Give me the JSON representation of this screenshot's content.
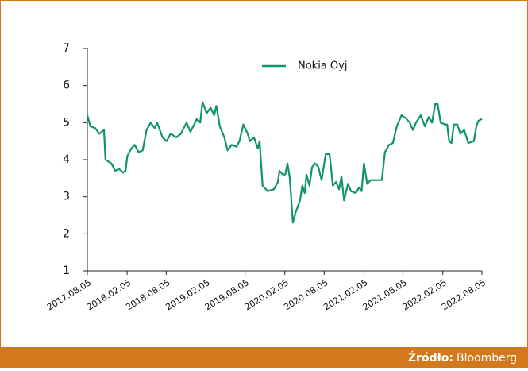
{
  "chart_data": {
    "type": "line",
    "x": [
      "2017.08.05",
      "2017.08.19",
      "2017.09.11",
      "2017.09.29",
      "2017.10.21",
      "2017.10.28",
      "2017.11.24",
      "2017.12.12",
      "2017.12.30",
      "2018.01.18",
      "2018.01.29",
      "2018.02.06",
      "2018.02.24",
      "2018.03.12",
      "2018.03.30",
      "2018.04.18",
      "2018.05.06",
      "2018.05.25",
      "2018.06.13",
      "2018.06.24",
      "2018.07.19",
      "2018.08.07",
      "2018.08.25",
      "2018.09.20",
      "2018.10.12",
      "2018.11.07",
      "2018.11.25",
      "2018.12.25",
      "2019.01.09",
      "2019.01.20",
      "2019.02.08",
      "2019.02.26",
      "2019.03.15",
      "2019.03.25",
      "2019.04.10",
      "2019.05.01",
      "2019.05.16",
      "2019.06.04",
      "2019.06.26",
      "2019.07.10",
      "2019.07.28",
      "2019.08.17",
      "2019.08.27",
      "2019.09.15",
      "2019.10.03",
      "2019.10.11",
      "2019.10.18",
      "2019.10.25",
      "2019.11.17",
      "2019.12.16",
      "2020.01.04",
      "2020.01.11",
      "2020.01.26",
      "2020.02.07",
      "2020.02.17",
      "2020.02.28",
      "2020.03.13",
      "2020.03.27",
      "2020.04.15",
      "2020.04.26",
      "2020.05.07",
      "2020.05.15",
      "2020.05.29",
      "2020.06.10",
      "2020.06.24",
      "2020.07.09",
      "2020.07.24",
      "2020.08.12",
      "2020.08.30",
      "2020.09.14",
      "2020.09.29",
      "2020.10.13",
      "2020.10.24",
      "2020.11.05",
      "2020.11.23",
      "2020.12.07",
      "2020.12.29",
      "2021.01.14",
      "2021.01.25",
      "2021.02.05",
      "2021.02.20",
      "2021.03.08",
      "2021.04.07",
      "2021.04.29",
      "2021.05.13",
      "2021.06.01",
      "2021.06.19",
      "2021.07.07",
      "2021.07.29",
      "2021.08.21",
      "2021.09.05",
      "2021.09.20",
      "2021.10.04",
      "2021.10.26",
      "2021.11.14",
      "2021.12.02",
      "2021.12.17",
      "2022.01.01",
      "2022.01.12",
      "2022.01.26",
      "2022.02.15",
      "2022.02.25",
      "2022.03.06",
      "2022.03.17",
      "2022.03.28",
      "2022.04.13",
      "2022.04.27",
      "2022.05.15",
      "2022.06.03",
      "2022.06.29",
      "2022.07.10",
      "2022.07.20",
      "2022.08.05"
    ],
    "series": [
      {
        "name": "Nokia Oyj",
        "color": "#0f9468",
        "values": [
          5.2,
          4.9,
          4.85,
          4.7,
          4.8,
          4.0,
          3.9,
          3.7,
          3.75,
          3.65,
          3.7,
          4.1,
          4.3,
          4.4,
          4.2,
          4.25,
          4.8,
          5.0,
          4.85,
          5.0,
          4.6,
          4.5,
          4.7,
          4.6,
          4.7,
          5.0,
          4.75,
          5.1,
          5.0,
          5.55,
          5.25,
          5.4,
          5.2,
          5.45,
          4.9,
          4.6,
          4.25,
          4.4,
          4.35,
          4.5,
          4.95,
          4.7,
          4.5,
          4.6,
          4.3,
          4.5,
          3.9,
          3.3,
          3.15,
          3.2,
          3.4,
          3.7,
          3.6,
          3.6,
          3.9,
          3.5,
          2.3,
          2.6,
          2.9,
          3.3,
          3.1,
          3.6,
          3.3,
          3.8,
          3.9,
          3.8,
          3.45,
          4.15,
          4.15,
          3.3,
          3.4,
          3.2,
          3.55,
          2.9,
          3.35,
          3.15,
          3.1,
          3.25,
          3.15,
          3.9,
          3.35,
          3.45,
          3.45,
          3.45,
          4.2,
          4.4,
          4.45,
          4.9,
          5.2,
          5.1,
          5.0,
          4.8,
          5.0,
          5.2,
          4.9,
          5.15,
          5.0,
          5.5,
          5.5,
          5.0,
          4.95,
          4.95,
          4.5,
          4.45,
          4.95,
          4.95,
          4.7,
          4.8,
          4.45,
          4.5,
          4.9,
          5.05,
          5.1
        ]
      }
    ],
    "xlim": [
      "2017.08.05",
      "2022.08.05"
    ],
    "xticks": [
      "2017.08.05",
      "2018.02.05",
      "2018.08.05",
      "2019.02.05",
      "2019.08.05",
      "2020.02.05",
      "2020.08.05",
      "2021.02.05",
      "2021.08.05",
      "2022.02.05",
      "2022.08.05"
    ],
    "ylim": [
      1,
      7
    ],
    "yticks": [
      1,
      2,
      3,
      4,
      5,
      6,
      7
    ],
    "grid": false,
    "legend": "top"
  },
  "footer": {
    "source_label": "Źródło:",
    "source": "Bloomberg"
  }
}
